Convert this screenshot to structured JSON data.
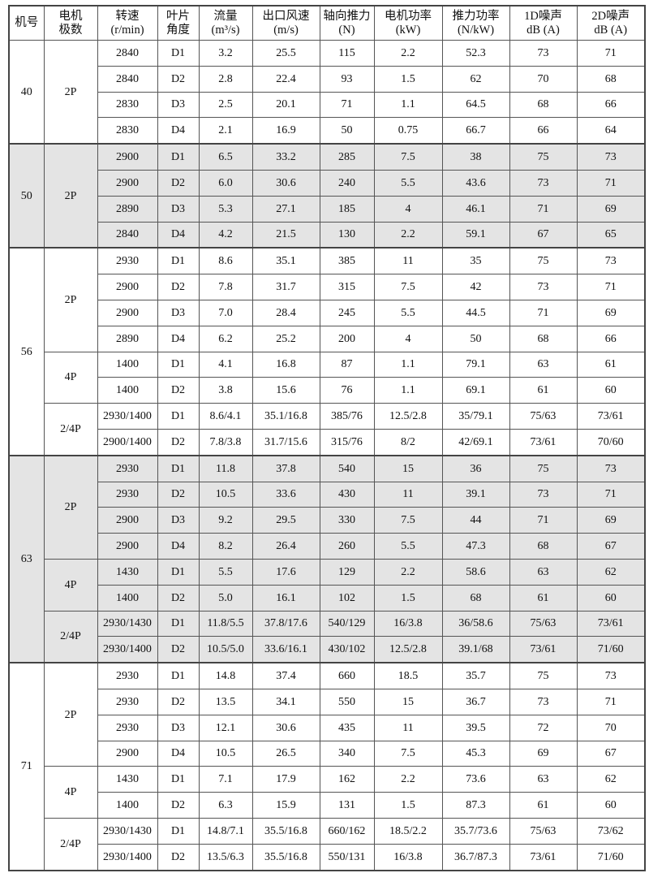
{
  "headers": [
    [
      "机号"
    ],
    [
      "电机",
      "极数"
    ],
    [
      "转速",
      "(r/min)"
    ],
    [
      "叶片",
      "角度"
    ],
    [
      "流量",
      "(m³/s)"
    ],
    [
      "出口风速",
      "(m/s)"
    ],
    [
      "轴向推力",
      "(N)"
    ],
    [
      "电机功率",
      "(kW)"
    ],
    [
      "推力功率",
      "(N/kW)"
    ],
    [
      "1D噪声",
      "dB (A)"
    ],
    [
      "2D噪声",
      "dB (A)"
    ]
  ],
  "groups": [
    {
      "model": "40",
      "gray": false,
      "poles": [
        {
          "pole": "2P",
          "rows": [
            [
              "2840",
              "D1",
              "3.2",
              "25.5",
              "115",
              "2.2",
              "52.3",
              "73",
              "71"
            ],
            [
              "2840",
              "D2",
              "2.8",
              "22.4",
              "93",
              "1.5",
              "62",
              "70",
              "68"
            ],
            [
              "2830",
              "D3",
              "2.5",
              "20.1",
              "71",
              "1.1",
              "64.5",
              "68",
              "66"
            ],
            [
              "2830",
              "D4",
              "2.1",
              "16.9",
              "50",
              "0.75",
              "66.7",
              "66",
              "64"
            ]
          ]
        }
      ]
    },
    {
      "model": "50",
      "gray": true,
      "poles": [
        {
          "pole": "2P",
          "rows": [
            [
              "2900",
              "D1",
              "6.5",
              "33.2",
              "285",
              "7.5",
              "38",
              "75",
              "73"
            ],
            [
              "2900",
              "D2",
              "6.0",
              "30.6",
              "240",
              "5.5",
              "43.6",
              "73",
              "71"
            ],
            [
              "2890",
              "D3",
              "5.3",
              "27.1",
              "185",
              "4",
              "46.1",
              "71",
              "69"
            ],
            [
              "2840",
              "D4",
              "4.2",
              "21.5",
              "130",
              "2.2",
              "59.1",
              "67",
              "65"
            ]
          ]
        }
      ]
    },
    {
      "model": "56",
      "gray": false,
      "poles": [
        {
          "pole": "2P",
          "rows": [
            [
              "2930",
              "D1",
              "8.6",
              "35.1",
              "385",
              "11",
              "35",
              "75",
              "73"
            ],
            [
              "2900",
              "D2",
              "7.8",
              "31.7",
              "315",
              "7.5",
              "42",
              "73",
              "71"
            ],
            [
              "2900",
              "D3",
              "7.0",
              "28.4",
              "245",
              "5.5",
              "44.5",
              "71",
              "69"
            ],
            [
              "2890",
              "D4",
              "6.2",
              "25.2",
              "200",
              "4",
              "50",
              "68",
              "66"
            ]
          ]
        },
        {
          "pole": "4P",
          "rows": [
            [
              "1400",
              "D1",
              "4.1",
              "16.8",
              "87",
              "1.1",
              "79.1",
              "63",
              "61"
            ],
            [
              "1400",
              "D2",
              "3.8",
              "15.6",
              "76",
              "1.1",
              "69.1",
              "61",
              "60"
            ]
          ]
        },
        {
          "pole": "2/4P",
          "rows": [
            [
              "2930/1400",
              "D1",
              "8.6/4.1",
              "35.1/16.8",
              "385/76",
              "12.5/2.8",
              "35/79.1",
              "75/63",
              "73/61"
            ],
            [
              "2900/1400",
              "D2",
              "7.8/3.8",
              "31.7/15.6",
              "315/76",
              "8/2",
              "42/69.1",
              "73/61",
              "70/60"
            ]
          ]
        }
      ]
    },
    {
      "model": "63",
      "gray": true,
      "poles": [
        {
          "pole": "2P",
          "rows": [
            [
              "2930",
              "D1",
              "11.8",
              "37.8",
              "540",
              "15",
              "36",
              "75",
              "73"
            ],
            [
              "2930",
              "D2",
              "10.5",
              "33.6",
              "430",
              "11",
              "39.1",
              "73",
              "71"
            ],
            [
              "2900",
              "D3",
              "9.2",
              "29.5",
              "330",
              "7.5",
              "44",
              "71",
              "69"
            ],
            [
              "2900",
              "D4",
              "8.2",
              "26.4",
              "260",
              "5.5",
              "47.3",
              "68",
              "67"
            ]
          ]
        },
        {
          "pole": "4P",
          "rows": [
            [
              "1430",
              "D1",
              "5.5",
              "17.6",
              "129",
              "2.2",
              "58.6",
              "63",
              "62"
            ],
            [
              "1400",
              "D2",
              "5.0",
              "16.1",
              "102",
              "1.5",
              "68",
              "61",
              "60"
            ]
          ]
        },
        {
          "pole": "2/4P",
          "rows": [
            [
              "2930/1430",
              "D1",
              "11.8/5.5",
              "37.8/17.6",
              "540/129",
              "16/3.8",
              "36/58.6",
              "75/63",
              "73/61"
            ],
            [
              "2930/1400",
              "D2",
              "10.5/5.0",
              "33.6/16.1",
              "430/102",
              "12.5/2.8",
              "39.1/68",
              "73/61",
              "71/60"
            ]
          ]
        }
      ]
    },
    {
      "model": "71",
      "gray": false,
      "poles": [
        {
          "pole": "2P",
          "rows": [
            [
              "2930",
              "D1",
              "14.8",
              "37.4",
              "660",
              "18.5",
              "35.7",
              "75",
              "73"
            ],
            [
              "2930",
              "D2",
              "13.5",
              "34.1",
              "550",
              "15",
              "36.7",
              "73",
              "71"
            ],
            [
              "2930",
              "D3",
              "12.1",
              "30.6",
              "435",
              "11",
              "39.5",
              "72",
              "70"
            ],
            [
              "2900",
              "D4",
              "10.5",
              "26.5",
              "340",
              "7.5",
              "45.3",
              "69",
              "67"
            ]
          ]
        },
        {
          "pole": "4P",
          "rows": [
            [
              "1430",
              "D1",
              "7.1",
              "17.9",
              "162",
              "2.2",
              "73.6",
              "63",
              "62"
            ],
            [
              "1400",
              "D2",
              "6.3",
              "15.9",
              "131",
              "1.5",
              "87.3",
              "61",
              "60"
            ]
          ]
        },
        {
          "pole": "2/4P",
          "rows": [
            [
              "2930/1430",
              "D1",
              "14.8/7.1",
              "35.5/16.8",
              "660/162",
              "18.5/2.2",
              "35.7/73.6",
              "75/63",
              "73/62"
            ],
            [
              "2930/1400",
              "D2",
              "13.5/6.3",
              "35.5/16.8",
              "550/131",
              "16/3.8",
              "36.7/87.3",
              "73/61",
              "71/60"
            ]
          ]
        }
      ]
    }
  ]
}
